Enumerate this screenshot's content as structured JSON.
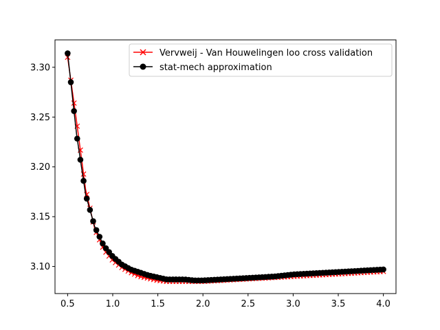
{
  "chart_data": {
    "type": "line",
    "title": "",
    "xlabel": "",
    "ylabel": "",
    "xlim": [
      0.36,
      4.14
    ],
    "ylim": [
      3.0728,
      3.3275
    ],
    "grid": false,
    "legend": {
      "placement": "top-right"
    },
    "x_ticks": [
      {
        "value": 0.5,
        "label": "0.5"
      },
      {
        "value": 1.0,
        "label": "1.0"
      },
      {
        "value": 1.5,
        "label": "1.5"
      },
      {
        "value": 2.0,
        "label": "2.0"
      },
      {
        "value": 2.5,
        "label": "2.5"
      },
      {
        "value": 3.0,
        "label": "3.0"
      },
      {
        "value": 3.5,
        "label": "3.5"
      },
      {
        "value": 4.0,
        "label": "4.0"
      }
    ],
    "y_ticks": [
      {
        "value": 3.1,
        "label": "3.10"
      },
      {
        "value": 3.15,
        "label": "3.15"
      },
      {
        "value": 3.2,
        "label": "3.20"
      },
      {
        "value": 3.25,
        "label": "3.25"
      },
      {
        "value": 3.3,
        "label": "3.30"
      }
    ],
    "series": [
      {
        "name": "Vervweij - Van Houwelingen loo cross validation",
        "color": "#ff0000",
        "marker": "x",
        "x": [
          0.5,
          0.6,
          0.7,
          0.8,
          0.9,
          1.0,
          1.1,
          1.2,
          1.3,
          1.4,
          1.5,
          1.6,
          1.7,
          1.8,
          1.9,
          2.0,
          2.2,
          2.4,
          2.6,
          2.8,
          3.0,
          3.2,
          3.4,
          3.6,
          3.8,
          4.0
        ],
        "y": [
          3.31,
          3.245,
          3.177,
          3.138,
          3.117,
          3.106,
          3.099,
          3.094,
          3.09,
          3.088,
          3.086,
          3.085,
          3.085,
          3.085,
          3.085,
          3.085,
          3.086,
          3.087,
          3.088,
          3.089,
          3.09,
          3.091,
          3.092,
          3.093,
          3.094,
          3.095
        ]
      },
      {
        "name": "stat-mech approximation",
        "color": "#000000",
        "marker": "o",
        "x": [
          0.5,
          0.6,
          0.7,
          0.8,
          0.9,
          1.0,
          1.1,
          1.2,
          1.3,
          1.4,
          1.5,
          1.6,
          1.7,
          1.8,
          1.9,
          2.0,
          2.2,
          2.4,
          2.6,
          2.8,
          3.0,
          3.2,
          3.4,
          3.6,
          3.8,
          4.0
        ],
        "y": [
          3.314,
          3.232,
          3.172,
          3.14,
          3.121,
          3.11,
          3.102,
          3.097,
          3.094,
          3.091,
          3.089,
          3.087,
          3.087,
          3.087,
          3.086,
          3.086,
          3.087,
          3.088,
          3.089,
          3.09,
          3.092,
          3.093,
          3.094,
          3.095,
          3.096,
          3.097
        ]
      }
    ]
  }
}
